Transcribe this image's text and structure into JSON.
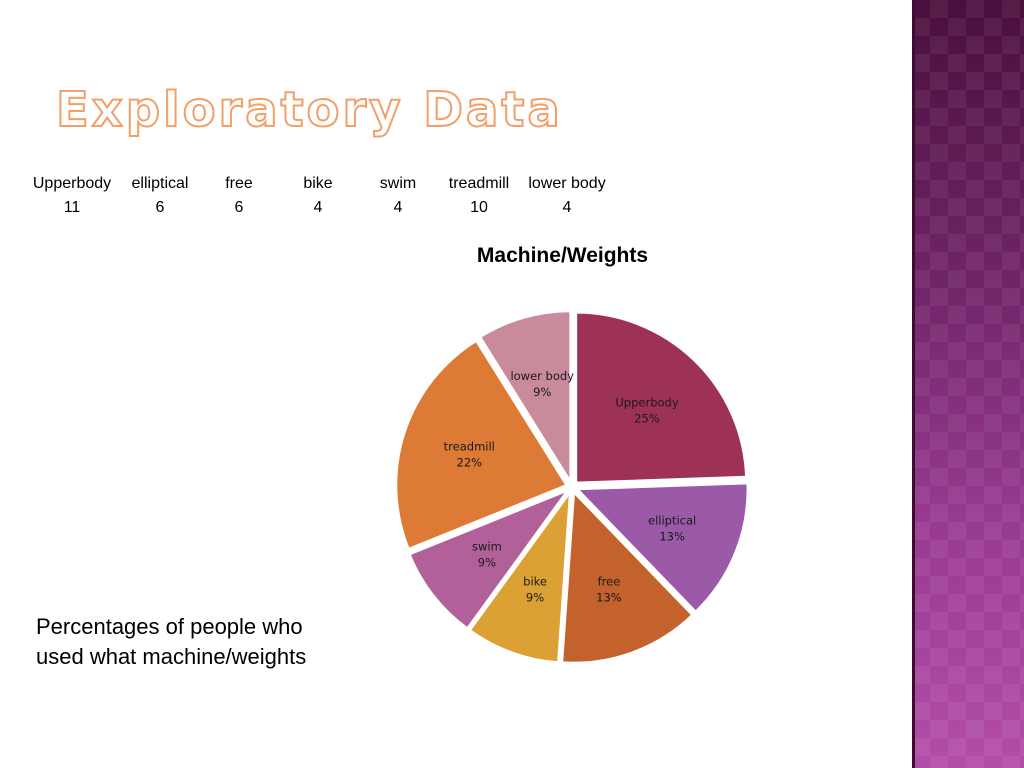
{
  "slide": {
    "title": "Exploratory Data",
    "caption": "Percentages of people who used what machine/weights",
    "accent_color": "#f0a068",
    "side_band_color": "#7a2a70"
  },
  "counts_table": {
    "headers": [
      "Upperbody",
      "elliptical",
      "free",
      "bike",
      "swim",
      "treadmill",
      "lower body"
    ],
    "values": [
      "11",
      "6",
      "6",
      "4",
      "4",
      "10",
      "4"
    ]
  },
  "chart_data": {
    "type": "pie",
    "title": "Machine/Weights",
    "categories": [
      "Upperbody",
      "elliptical",
      "free",
      "bike",
      "swim",
      "treadmill",
      "lower body"
    ],
    "values": [
      11,
      6,
      6,
      4,
      4,
      10,
      4
    ],
    "percent_labels": [
      "25%",
      "13%",
      "13%",
      "9%",
      "9%",
      "22%",
      "9%"
    ],
    "colors": [
      "#9e3157",
      "#9a5aa8",
      "#c4622e",
      "#dca134",
      "#b2609a",
      "#dd7a36",
      "#c98a9c"
    ],
    "exploded": true,
    "legend": "none"
  }
}
